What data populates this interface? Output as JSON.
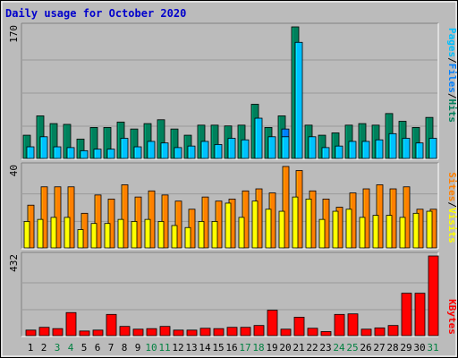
{
  "title": "Daily usage for October 2020",
  "colors": {
    "background": "#bbbbbb",
    "title_text": "#0000cc",
    "hits": "#00805c",
    "files": "#0080ff",
    "pages": "#00c0ff",
    "visits": "#ff8000",
    "sites": "#ffff00",
    "kbytes": "#ff0000"
  },
  "chart_data": [
    {
      "type": "bar",
      "title": "Daily usage for October 2020",
      "categories": [
        "1",
        "2",
        "3",
        "4",
        "5",
        "6",
        "7",
        "8",
        "9",
        "10",
        "11",
        "12",
        "13",
        "14",
        "15",
        "16",
        "17",
        "18",
        "19",
        "20",
        "21",
        "22",
        "23",
        "24",
        "25",
        "26",
        "27",
        "28",
        "29",
        "30",
        "31"
      ],
      "categories_highlight": [
        "3",
        "4",
        "10",
        "11",
        "17",
        "18",
        "24",
        "25",
        "31"
      ],
      "ylabel_max": "170",
      "axis_labels": [
        "Pages",
        "Files",
        "Hits"
      ],
      "ylim": [
        0,
        170
      ],
      "series": [
        {
          "name": "Hits",
          "values": [
            30,
            55,
            45,
            44,
            25,
            40,
            40,
            47,
            38,
            45,
            50,
            38,
            30,
            43,
            43,
            42,
            43,
            70,
            40,
            55,
            170,
            43,
            30,
            33,
            43,
            45,
            43,
            58,
            48,
            40,
            53
          ]
        },
        {
          "name": "Files",
          "values": [
            0,
            0,
            0,
            0,
            0,
            0,
            0,
            0,
            0,
            0,
            0,
            0,
            0,
            0,
            0,
            0,
            0,
            0,
            0,
            38,
            0,
            0,
            0,
            0,
            0,
            0,
            0,
            0,
            0,
            0,
            0
          ]
        },
        {
          "name": "Pages",
          "values": [
            15,
            28,
            15,
            14,
            10,
            12,
            12,
            26,
            15,
            22,
            20,
            14,
            16,
            22,
            18,
            26,
            24,
            52,
            28,
            28,
            150,
            28,
            14,
            16,
            22,
            22,
            24,
            32,
            26,
            20,
            26
          ]
        }
      ]
    },
    {
      "type": "bar",
      "categories": [
        "1",
        "2",
        "3",
        "4",
        "5",
        "6",
        "7",
        "8",
        "9",
        "10",
        "11",
        "12",
        "13",
        "14",
        "15",
        "16",
        "17",
        "18",
        "19",
        "20",
        "21",
        "22",
        "23",
        "24",
        "25",
        "26",
        "27",
        "28",
        "29",
        "30",
        "31"
      ],
      "ylabel_max": "40",
      "axis_labels": [
        "Sites",
        "Visits"
      ],
      "ylim": [
        0,
        40
      ],
      "series": [
        {
          "name": "Visits",
          "values": [
            21,
            30,
            30,
            30,
            17,
            26,
            24,
            31,
            25,
            28,
            26,
            23,
            19,
            25,
            23,
            24,
            28,
            29,
            27,
            40,
            38,
            28,
            24,
            20,
            27,
            29,
            31,
            29,
            30,
            19,
            19
          ]
        },
        {
          "name": "Sites",
          "values": [
            13,
            14,
            15,
            15,
            9,
            12,
            12,
            14,
            13,
            14,
            13,
            11,
            10,
            13,
            13,
            22,
            15,
            23,
            19,
            18,
            25,
            24,
            14,
            18,
            19,
            15,
            16,
            16,
            15,
            17,
            18
          ]
        }
      ]
    },
    {
      "type": "bar",
      "categories": [
        "1",
        "2",
        "3",
        "4",
        "5",
        "6",
        "7",
        "8",
        "9",
        "10",
        "11",
        "12",
        "13",
        "14",
        "15",
        "16",
        "17",
        "18",
        "19",
        "20",
        "21",
        "22",
        "23",
        "24",
        "25",
        "26",
        "27",
        "28",
        "29",
        "30",
        "31"
      ],
      "ylabel_max": "432",
      "axis_labels": [
        "KBytes"
      ],
      "ylim": [
        0,
        432
      ],
      "series": [
        {
          "name": "KBytes",
          "values": [
            30,
            45,
            38,
            125,
            25,
            30,
            115,
            50,
            35,
            38,
            50,
            30,
            30,
            40,
            38,
            45,
            45,
            55,
            138,
            35,
            100,
            40,
            22,
            115,
            118,
            35,
            42,
            55,
            230,
            230,
            432
          ]
        }
      ]
    }
  ]
}
